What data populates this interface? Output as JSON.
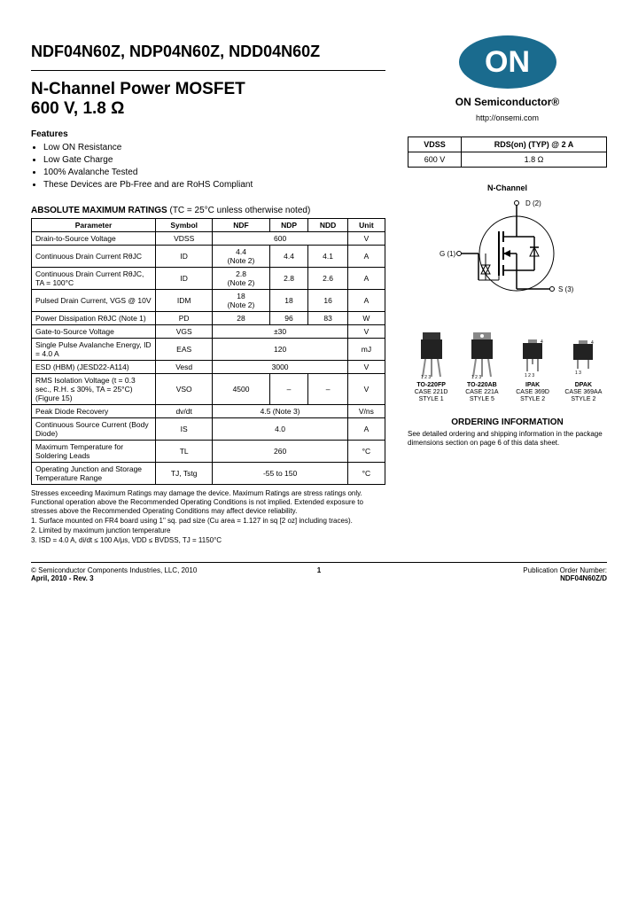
{
  "header": {
    "part_numbers": "NDF04N60Z, NDP04N60Z, NDD04N60Z",
    "title_line1": "N-Channel Power MOSFET",
    "title_line2": "600 V, 1.8 Ω"
  },
  "features": {
    "label": "Features",
    "items": [
      "Low ON Resistance",
      "Low Gate Charge",
      "100% Avalanche Tested",
      "These Devices are Pb-Free and are RoHS Compliant"
    ]
  },
  "ratings": {
    "title": "ABSOLUTE MAXIMUM RATINGS",
    "title_note": "(TC = 25°C unless otherwise noted)",
    "headers": [
      "Parameter",
      "Symbol",
      "NDF",
      "NDP",
      "NDD",
      "Unit"
    ],
    "rows": [
      {
        "param": "Drain-to-Source Voltage",
        "symbol": "VDSS",
        "vals": [
          "600",
          "",
          "",
          ""
        ],
        "span": 3,
        "unit": "V"
      },
      {
        "param": "Continuous Drain Current RθJC",
        "symbol": "ID",
        "vals": [
          "4.4\n(Note 2)",
          "4.4",
          "4.1"
        ],
        "unit": "A"
      },
      {
        "param": "Continuous Drain Current RθJC, TA = 100°C",
        "symbol": "ID",
        "vals": [
          "2.8\n(Note 2)",
          "2.8",
          "2.6"
        ],
        "unit": "A"
      },
      {
        "param": "Pulsed Drain Current, VGS @ 10V",
        "symbol": "IDM",
        "vals": [
          "18\n(Note 2)",
          "18",
          "16"
        ],
        "unit": "A"
      },
      {
        "param": "Power Dissipation RθJC (Note 1)",
        "symbol": "PD",
        "vals": [
          "28",
          "96",
          "83"
        ],
        "unit": "W"
      },
      {
        "param": "Gate-to-Source Voltage",
        "symbol": "VGS",
        "vals": [
          "±30",
          "",
          ""
        ],
        "span": 3,
        "unit": "V"
      },
      {
        "param": "Single Pulse Avalanche Energy, ID = 4.0 A",
        "symbol": "EAS",
        "vals": [
          "120",
          "",
          ""
        ],
        "span": 3,
        "unit": "mJ"
      },
      {
        "param": "ESD (HBM) (JESD22-A114)",
        "symbol": "Vesd",
        "vals": [
          "3000",
          "",
          ""
        ],
        "span": 3,
        "unit": "V"
      },
      {
        "param": "RMS Isolation Voltage (t = 0.3 sec., R.H. ≤ 30%, TA = 25°C) (Figure 15)",
        "symbol": "VSO",
        "vals": [
          "4500",
          "–",
          "–"
        ],
        "unit": "V"
      },
      {
        "param": "Peak Diode Recovery",
        "symbol": "dv/dt",
        "vals": [
          "4.5 (Note 3)",
          "",
          ""
        ],
        "span": 3,
        "unit": "V/ns"
      },
      {
        "param": "Continuous Source Current (Body Diode)",
        "symbol": "IS",
        "vals": [
          "4.0",
          "",
          ""
        ],
        "span": 3,
        "unit": "A"
      },
      {
        "param": "Maximum Temperature for Soldering Leads",
        "symbol": "TL",
        "vals": [
          "260",
          "",
          ""
        ],
        "span": 3,
        "unit": "°C"
      },
      {
        "param": "Operating Junction and Storage Temperature Range",
        "symbol": "TJ, Tstg",
        "vals": [
          "-55 to 150",
          "",
          ""
        ],
        "span": 3,
        "unit": "°C"
      }
    ]
  },
  "footnotes": {
    "stress": "Stresses exceeding Maximum Ratings may damage the device. Maximum Ratings are stress ratings only. Functional operation above the Recommended Operating Conditions is not implied. Extended exposure to stresses above the Recommended Operating Conditions may affect device reliability.",
    "notes": [
      "1. Surface mounted on FR4 board using 1\" sq. pad size (Cu area = 1.127 in sq [2 oz] including traces).",
      "2. Limited by maximum junction temperature",
      "3. ISD = 4.0 A, di/dt ≤ 100 A/μs, VDD ≤ BVDSS, TJ = 1150°C"
    ]
  },
  "brand": {
    "logo_text": "ON",
    "name": "ON Semiconductor®",
    "url": "http://onsemi.com"
  },
  "spec_box": {
    "headers": [
      "VDSS",
      "RDS(on) (TYP) @ 2 A"
    ],
    "values": [
      "600 V",
      "1.8 Ω"
    ]
  },
  "schematic": {
    "label": "N-Channel",
    "d": "D (2)",
    "g": "G (1)",
    "s": "S (3)"
  },
  "packages": [
    {
      "name": "TO-220FP",
      "case": "CASE 221D",
      "style": "STYLE 1"
    },
    {
      "name": "TO-220AB",
      "case": "CASE 221A",
      "style": "STYLE 5"
    },
    {
      "name": "IPAK",
      "case": "CASE 369D",
      "style": "STYLE 2"
    },
    {
      "name": "DPAK",
      "case": "CASE 369AA",
      "style": "STYLE 2"
    }
  ],
  "ordering": {
    "title": "ORDERING INFORMATION",
    "text": "See detailed ordering and shipping information in the package dimensions section on page 6 of this data sheet."
  },
  "footer": {
    "left_line1": "© Semiconductor Components Industries, LLC, 2010",
    "left_line2": "April, 2010 - Rev. 3",
    "page": "1",
    "right_line1": "Publication Order Number:",
    "right_line2": "NDF04N60Z/D"
  }
}
